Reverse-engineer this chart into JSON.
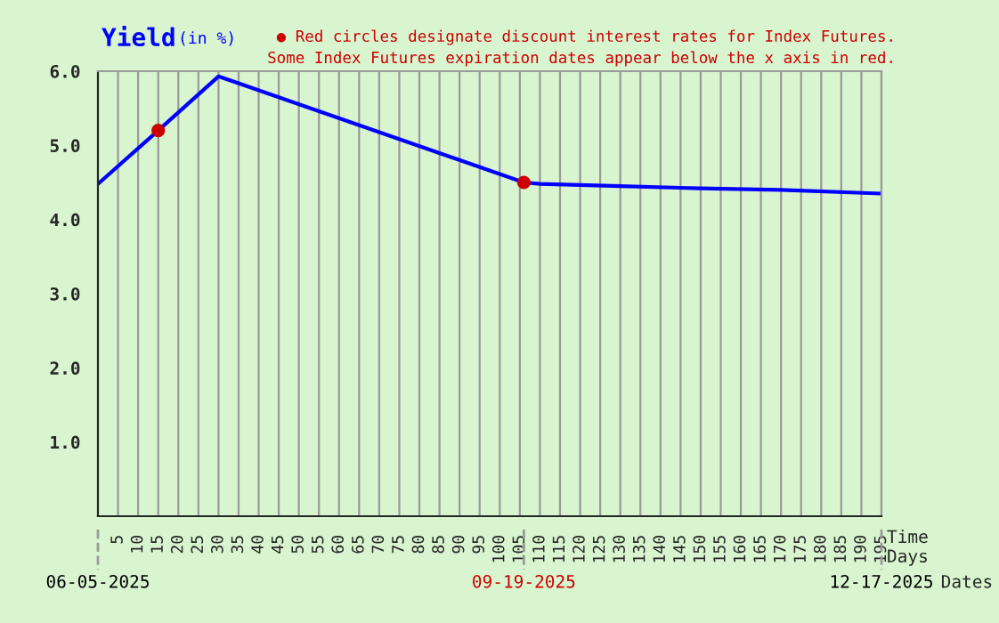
{
  "chart_data": {
    "type": "line",
    "title": "Yield",
    "subtitle": "(in %)",
    "xlabel": "Time\nDays",
    "annotations": [
      "● Red circles designate discount interest rates for Index Futures.",
      "Some Index Futures expiration dates appear below the x axis in red.",
      {
        "text": "06-05-2025",
        "x": 0
      },
      {
        "text": "09-19-2025",
        "x": 106
      },
      {
        "text": "12-17-2025",
        "x": 195
      },
      "Dates"
    ],
    "series": [
      {
        "color": "#0000ff",
        "x": [
          0,
          15,
          30,
          106,
          110,
          130,
          150,
          170,
          195
        ],
        "values": [
          4.48,
          5.2,
          5.93,
          4.5,
          4.48,
          4.45,
          4.42,
          4.4,
          4.35
        ]
      },
      {
        "type": "scatter",
        "color": "#cc0000",
        "x": [
          15,
          106
        ],
        "values": [
          5.2,
          4.5
        ]
      }
    ],
    "xlim": [
      0,
      195
    ],
    "xticks": [
      5,
      10,
      15,
      20,
      25,
      30,
      35,
      40,
      45,
      50,
      55,
      60,
      65,
      70,
      75,
      80,
      85,
      90,
      95,
      100,
      105,
      110,
      115,
      120,
      125,
      130,
      135,
      140,
      145,
      150,
      155,
      160,
      165,
      170,
      175,
      180,
      185,
      190,
      195
    ],
    "ylim": [
      0,
      6
    ],
    "yticks": [
      {
        "value": 1,
        "label": "1.0"
      },
      {
        "value": 2,
        "label": "2.0"
      },
      {
        "value": 3,
        "label": "3.0"
      },
      {
        "value": 4,
        "label": "4.0"
      },
      {
        "value": 5,
        "label": "5.0"
      },
      {
        "value": 6,
        "label": "6.0"
      }
    ],
    "grid": "x",
    "line_style": "solid"
  }
}
